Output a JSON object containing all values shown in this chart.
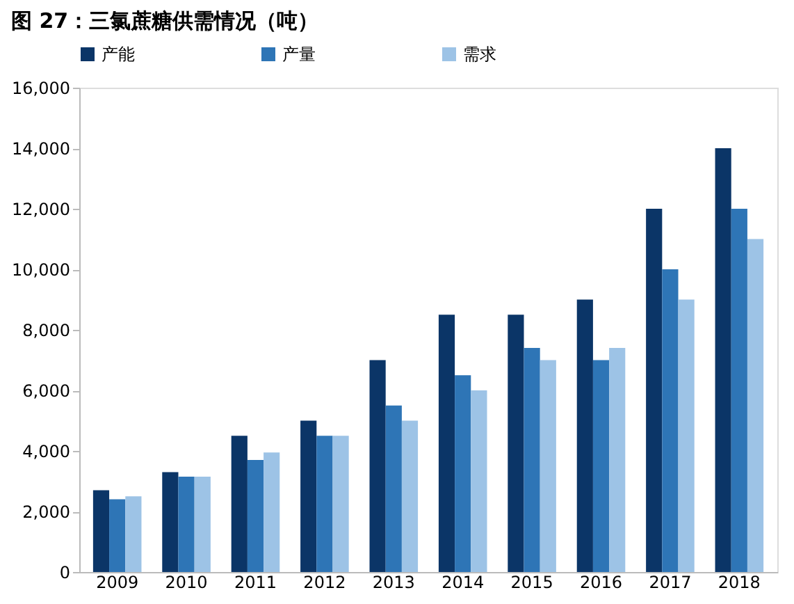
{
  "chart_data": {
    "type": "bar",
    "title": "图 27：三氯蔗糖供需情况（吨）",
    "categories": [
      "2009",
      "2010",
      "2011",
      "2012",
      "2013",
      "2014",
      "2015",
      "2016",
      "2017",
      "2018"
    ],
    "series": [
      {
        "name": "产能",
        "color": "#0b3567",
        "values": [
          2700,
          3300,
          4500,
          5000,
          7000,
          8500,
          8500,
          9000,
          12000,
          14000
        ]
      },
      {
        "name": "产量",
        "color": "#2e75b6",
        "values": [
          2400,
          3150,
          3700,
          4500,
          5500,
          6500,
          7400,
          7000,
          10000,
          12000
        ]
      },
      {
        "name": "需求",
        "color": "#9dc3e6",
        "values": [
          2500,
          3150,
          3950,
          4500,
          5000,
          6000,
          7000,
          7400,
          9000,
          11000
        ]
      }
    ],
    "ylim": [
      0,
      16000
    ],
    "yticks": [
      0,
      {
        "value": 2000,
        "label": "2,000"
      },
      {
        "value": 4000,
        "label": "4,000"
      },
      {
        "value": 6000,
        "label": "6,000"
      },
      {
        "value": 8000,
        "label": "8,000"
      },
      {
        "value": 10000,
        "label": "10,000"
      },
      {
        "value": 12000,
        "label": "12,000"
      },
      {
        "value": 14000,
        "label": "14,000"
      },
      {
        "value": 16000,
        "label": "16,000"
      }
    ],
    "grid": false,
    "legend": "top"
  }
}
